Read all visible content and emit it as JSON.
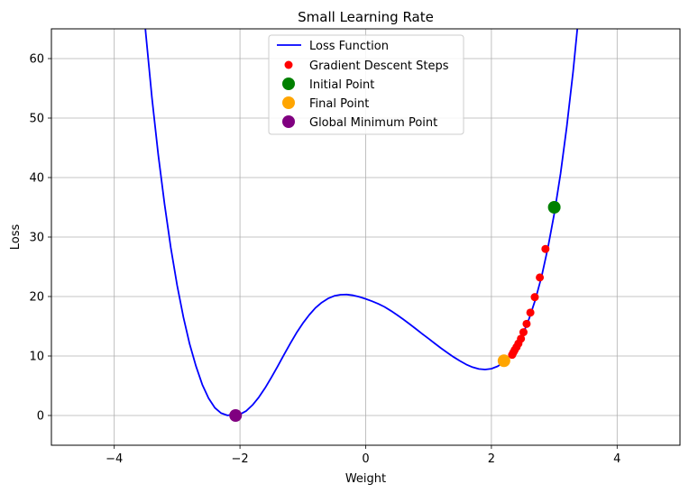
{
  "chart_data": {
    "type": "line",
    "title": "Small Learning Rate",
    "xlabel": "Weight",
    "ylabel": "Loss",
    "xlim": [
      -5,
      5
    ],
    "ylim": [
      -5,
      65
    ],
    "xticks": [
      -4,
      -2,
      0,
      2,
      4
    ],
    "yticks": [
      0,
      10,
      20,
      30,
      40,
      50,
      60
    ],
    "grid": true,
    "legend_position": "top-center",
    "curve": {
      "name": "Loss Function",
      "color": "#0000ff",
      "x": [
        -3.6,
        -3.5,
        -3.4,
        -3.3,
        -3.2,
        -3.1,
        -3.0,
        -2.9,
        -2.8,
        -2.7,
        -2.6,
        -2.5,
        -2.4,
        -2.3,
        -2.2,
        -2.1,
        -2.05,
        -2.0,
        -1.9,
        -1.8,
        -1.7,
        -1.6,
        -1.5,
        -1.4,
        -1.3,
        -1.2,
        -1.1,
        -1.0,
        -0.9,
        -0.8,
        -0.7,
        -0.6,
        -0.5,
        -0.4,
        -0.3,
        -0.2,
        -0.1,
        0.0,
        0.1,
        0.2,
        0.3,
        0.4,
        0.5,
        0.6,
        0.7,
        0.8,
        0.9,
        1.0,
        1.1,
        1.2,
        1.3,
        1.4,
        1.5,
        1.6,
        1.7,
        1.8,
        1.9,
        2.0,
        2.1,
        2.2,
        2.3,
        2.4,
        2.5,
        2.6,
        2.7,
        2.8,
        2.9,
        3.0,
        3.1,
        3.2,
        3.3,
        3.4
      ],
      "y": [
        76.5,
        64.3,
        53.4,
        43.8,
        35.5,
        28.2,
        21.9,
        16.5,
        12.0,
        8.3,
        5.2,
        2.9,
        1.3,
        0.4,
        0.02,
        0.13,
        0.0,
        0.19,
        0.78,
        1.75,
        3.06,
        4.63,
        6.4,
        8.28,
        10.21,
        12.1,
        13.89,
        15.5,
        16.9,
        18.07,
        18.99,
        19.67,
        20.1,
        20.31,
        20.33,
        20.2,
        19.94,
        19.6,
        19.21,
        18.78,
        18.25,
        17.61,
        16.9,
        16.15,
        15.36,
        14.55,
        13.73,
        12.92,
        12.11,
        11.31,
        10.54,
        9.82,
        9.16,
        8.58,
        8.12,
        7.82,
        7.72,
        7.86,
        8.27,
        9.0,
        10.1,
        11.63,
        13.67,
        16.27,
        19.5,
        23.46,
        28.23,
        33.93,
        40.68,
        48.6,
        57.84,
        68.55
      ]
    },
    "steps": {
      "name": "Gradient Descent Steps",
      "color": "#ff0000",
      "x": [
        2.86,
        2.77,
        2.69,
        2.62,
        2.56,
        2.51,
        2.47,
        2.43,
        2.4,
        2.37,
        2.35,
        2.33
      ],
      "y": [
        28.0,
        23.2,
        19.9,
        17.3,
        15.4,
        14.0,
        12.9,
        12.1,
        11.5,
        11.0,
        10.6,
        10.2
      ]
    },
    "initial_point": {
      "name": "Initial Point",
      "color": "#008000",
      "x": 3.0,
      "y": 35.0
    },
    "final_point": {
      "name": "Final Point",
      "color": "#ffa500",
      "x": 2.2,
      "y": 9.2
    },
    "global_min_point": {
      "name": "Global Minimum Point",
      "color": "#800080",
      "x": -2.07,
      "y": 0.0
    }
  }
}
